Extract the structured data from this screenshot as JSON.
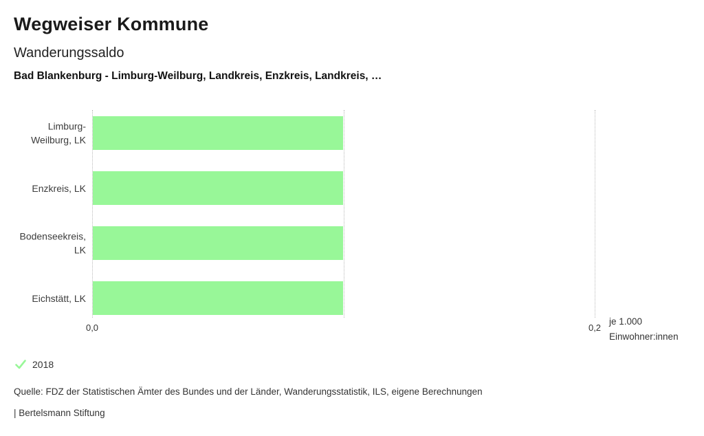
{
  "header": {
    "title": "Wegweiser Kommune",
    "subtitle": "Wanderungssaldo",
    "selection": "Bad Blankenburg - Limburg-Weilburg,  Landkreis,  Enzkreis,  Landkreis,  …"
  },
  "chart_data": {
    "type": "bar",
    "orientation": "horizontal",
    "title": "Wanderungssaldo",
    "subtitle": "Bad Blankenburg - Limburg-Weilburg, Landkreis, Enzkreis, Landkreis, …",
    "categories": [
      "Limburg-Weilburg, LK",
      "Enzkreis, LK",
      "Bodenseekreis, LK",
      "Eichstätt, LK"
    ],
    "category_label_lines": [
      [
        "Limburg-",
        "Weilburg, LK"
      ],
      [
        "Enzkreis, LK"
      ],
      [
        "Bodenseekreis,",
        "LK"
      ],
      [
        "Eichstätt, LK"
      ]
    ],
    "series": [
      {
        "name": "2018",
        "values": [
          0.1,
          0.1,
          0.1,
          0.1
        ]
      }
    ],
    "xlabel": "je 1.000 Einwohner:innen",
    "x_unit_lines": [
      "je 1.000",
      "Einwohner:innen"
    ],
    "xlim": [
      0,
      0.2
    ],
    "x_gridlines": [
      0,
      0.1,
      0.2
    ],
    "x_tick_labels": [
      {
        "value": 0,
        "label": "0,0"
      },
      {
        "value": 0.2,
        "label": "0,2"
      }
    ],
    "grid": true,
    "legend_position": "bottom-left"
  },
  "legend": {
    "items": [
      {
        "label": "2018",
        "icon": "check-icon"
      }
    ]
  },
  "footer": {
    "source": "Quelle: FDZ der Statistischen Ämter des Bundes und der Länder, Wanderungsstatistik, ILS, eigene Berechnungen",
    "attribution": "| Bertelsmann Stiftung"
  },
  "colors": {
    "bar": "#98f798",
    "check": "#98f798",
    "gridline": "#b9b9b9"
  }
}
